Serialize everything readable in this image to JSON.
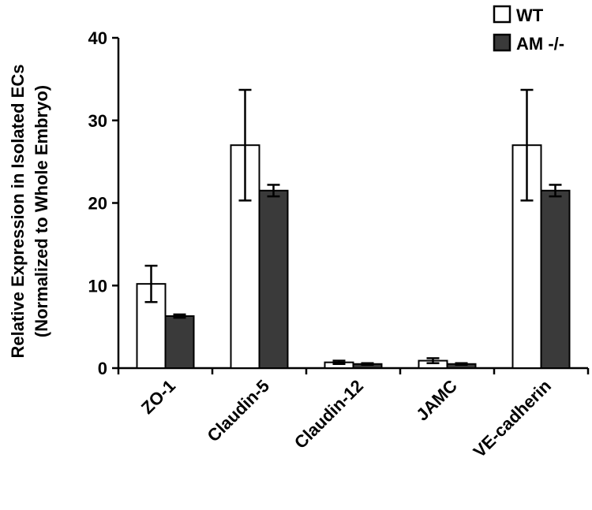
{
  "chart_data": {
    "type": "bar",
    "title": "",
    "ylabel_line1": "Relative Expression in Isolated ECs",
    "ylabel_line2": "(Normalized to Whole Embryo)",
    "xlabel": "",
    "ylim": [
      0,
      40
    ],
    "yticks": [
      0,
      10,
      20,
      30,
      40
    ],
    "categories": [
      "ZO-1",
      "Claudin-5",
      "Claudin-12",
      "JAMC",
      "VE-cadherin"
    ],
    "series": [
      {
        "name": "WT",
        "color": "#ffffff",
        "values": [
          10.2,
          27.0,
          0.7,
          0.9,
          27.0
        ],
        "errors": [
          2.2,
          6.7,
          0.2,
          0.3,
          6.7
        ]
      },
      {
        "name": "AM -/-",
        "color": "#3a3a3a",
        "values": [
          6.3,
          21.5,
          0.5,
          0.5,
          21.5
        ],
        "errors": [
          0.2,
          0.7,
          0.1,
          0.1,
          0.7
        ]
      }
    ],
    "legend_position": "top-right",
    "grid": false
  }
}
